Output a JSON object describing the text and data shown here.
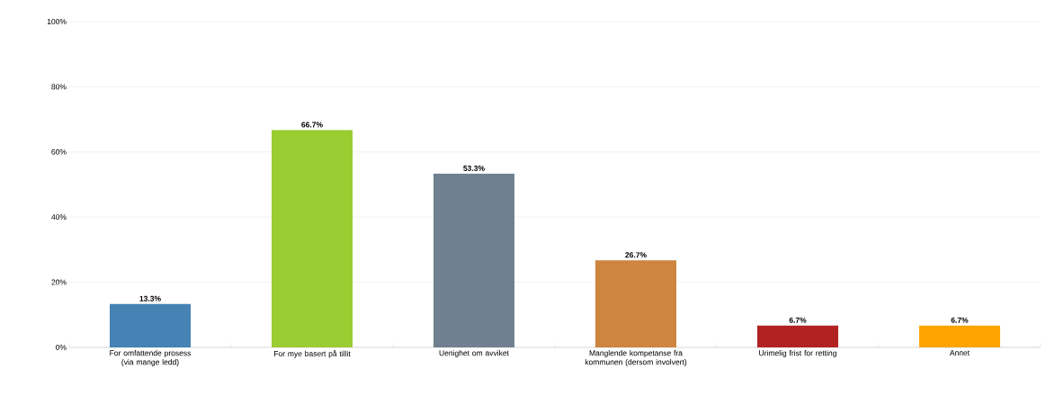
{
  "chart_data": {
    "type": "bar",
    "categories": [
      "For omfattende prosess (via mange ledd)",
      "For mye basert på tillit",
      "Uenighet om avviket",
      "Manglende kompetanse fra kommunen (dersom involvert)",
      "Urimelig frist for retting",
      "Annet"
    ],
    "values": [
      13.3,
      66.7,
      53.3,
      26.7,
      6.7,
      6.7
    ],
    "colors": [
      "#4682b4",
      "#9acd32",
      "#708090",
      "#cd853f",
      "#b22222",
      "#ffa500"
    ],
    "value_labels": [
      "13.3%",
      "66.7%",
      "53.3%",
      "26.7%",
      "6.7%",
      "6.7%"
    ],
    "ylim": [
      0,
      100
    ],
    "yticks": [
      {
        "value": 0,
        "label": "0%"
      },
      {
        "value": 20,
        "label": "20%"
      },
      {
        "value": 40,
        "label": "40%"
      },
      {
        "value": 60,
        "label": "60%"
      },
      {
        "value": 80,
        "label": "80%"
      },
      {
        "value": 100,
        "label": "100%"
      }
    ],
    "grid": "y"
  }
}
